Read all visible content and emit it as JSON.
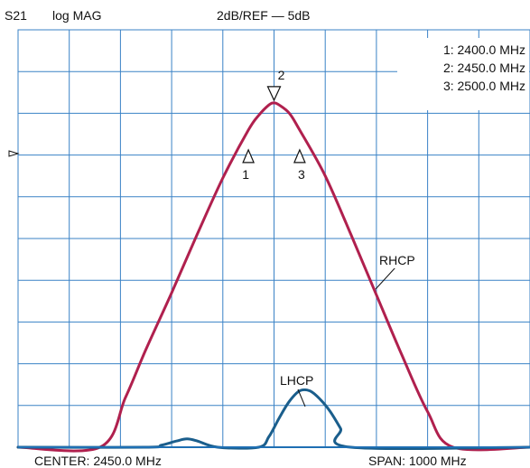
{
  "header": {
    "parameter": "S21",
    "format": "log MAG",
    "scale": "2dB/REF — 5dB"
  },
  "footer": {
    "center": "CENTER:  2450.0 MHz",
    "span": "SPAN:  1000 MHz"
  },
  "markers": [
    {
      "id": "1",
      "readout": "1: 2400.0 MHz",
      "freq_mhz": 2400.0,
      "direction": "up"
    },
    {
      "id": "2",
      "readout": "2: 2450.0 MHz",
      "freq_mhz": 2450.0,
      "direction": "down"
    },
    {
      "id": "3",
      "readout": "3: 2500.0 MHz",
      "freq_mhz": 2500.0,
      "direction": "up"
    }
  ],
  "colors": {
    "grid": "#3a82c6",
    "rhcp": "#b0204e",
    "lhcp": "#1a5e8c"
  },
  "chart_data": {
    "type": "line",
    "title": "",
    "xlabel": "",
    "ylabel": "",
    "x_unit": "MHz",
    "y_unit": "dB",
    "xlim": [
      1950,
      2950
    ],
    "ylim": [
      -15,
      5
    ],
    "grid": true,
    "x_divisions": 10,
    "y_divisions": 10,
    "reference_level_db": 5,
    "scale_db_per_div": 2,
    "series": [
      {
        "name": "RHCP",
        "color": "#b0204e",
        "x": [
          1950,
          2110,
          2160,
          2200,
          2250,
          2300,
          2350,
          2400,
          2420,
          2440,
          2450,
          2460,
          2480,
          2500,
          2550,
          2600,
          2650,
          2700,
          2750,
          2800,
          2950
        ],
        "y": [
          -15,
          -15,
          -12.6,
          -10.3,
          -7.6,
          -4.8,
          -2.1,
          0.2,
          0.9,
          1.4,
          1.5,
          1.4,
          1.0,
          0.2,
          -2.0,
          -4.8,
          -7.7,
          -10.6,
          -13.3,
          -15,
          -15
        ]
      },
      {
        "name": "LHCP",
        "color": "#1a5e8c",
        "x": [
          1950,
          2200,
          2230,
          2260,
          2280,
          2300,
          2340,
          2420,
          2440,
          2460,
          2480,
          2500,
          2520,
          2540,
          2560,
          2580,
          2600,
          2950
        ],
        "y": [
          -15,
          -15,
          -14.9,
          -14.7,
          -14.6,
          -14.7,
          -15,
          -15,
          -14.5,
          -13.6,
          -12.8,
          -12.3,
          -12.3,
          -12.7,
          -13.3,
          -14.1,
          -15,
          -15
        ]
      }
    ]
  }
}
